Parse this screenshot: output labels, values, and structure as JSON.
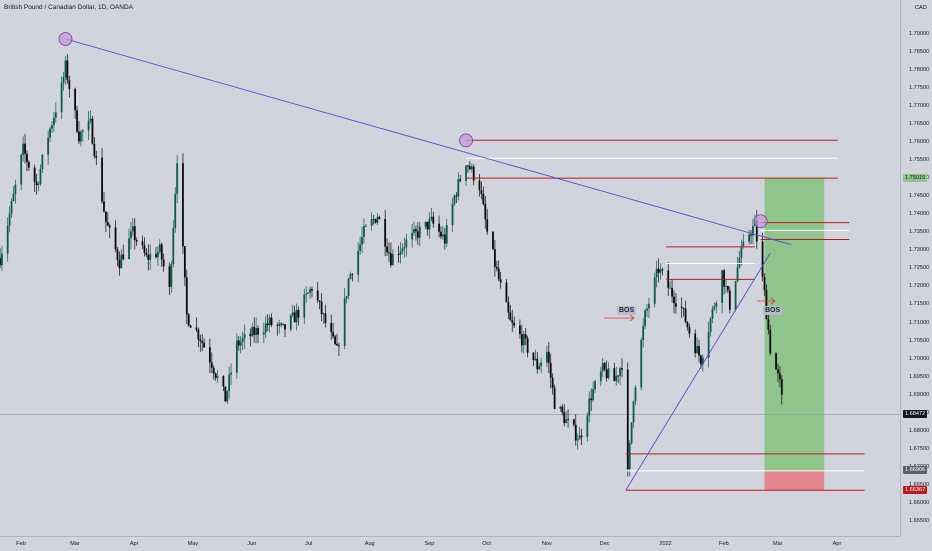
{
  "title": "British Pound / Canadian Dollar, 1D, OANDA",
  "currency": "CAD",
  "colors": {
    "background": "#d1d4dc",
    "candle_up": "#0b5a4f",
    "candle_down": "#0a0a0a",
    "trendline": "#5b4ccf",
    "level_red": "#b71c1c",
    "level_white": "#ffffff",
    "target_zone": "#8fc48d",
    "stop_zone": "#e0848e",
    "pivot_marker": "#c29bd8"
  },
  "price_axis": [
    "1.79000",
    "1.78500",
    "1.78000",
    "1.77500",
    "1.77000",
    "1.76500",
    "1.76000",
    "1.75500",
    "1.75000",
    "1.74500",
    "1.74000",
    "1.73500",
    "1.73000",
    "1.72500",
    "1.72000",
    "1.71500",
    "1.71000",
    "1.70500",
    "1.70000",
    "1.69500",
    "1.69000",
    "1.68500",
    "1.68000",
    "1.67500",
    "1.67000",
    "1.66500",
    "1.66000",
    "1.65500"
  ],
  "time_axis": [
    "Feb",
    "Mar",
    "Apr",
    "May",
    "Jun",
    "Jul",
    "Aug",
    "Sep",
    "Oct",
    "Nov",
    "Dec",
    "2022",
    "Feb",
    "Mar",
    "Apr"
  ],
  "price_tags": {
    "target": "1.75015",
    "current": "1.68472",
    "entry": "1.66906",
    "stop": "1.66367"
  },
  "annotations": {
    "bos_1": "BOS",
    "bos_2": "BOS"
  },
  "chart_data": {
    "type": "candlestick",
    "symbol": "GBPCAD",
    "timeframe": "1D",
    "ylim": [
      1.651,
      1.7995
    ],
    "x_range_months": [
      "Feb 2021",
      "Apr 2022"
    ],
    "path": [
      {
        "date": "2021-01-21",
        "price": 1.728
      },
      {
        "date": "2021-01-28",
        "price": 1.745
      },
      {
        "date": "2021-02-02",
        "price": 1.758
      },
      {
        "date": "2021-02-09",
        "price": 1.748
      },
      {
        "date": "2021-02-15",
        "price": 1.762
      },
      {
        "date": "2021-02-22",
        "price": 1.775
      },
      {
        "date": "2021-02-24",
        "price": 1.781
      },
      {
        "date": "2021-03-03",
        "price": 1.762
      },
      {
        "date": "2021-03-09",
        "price": 1.765
      },
      {
        "date": "2021-03-17",
        "price": 1.738
      },
      {
        "date": "2021-03-24",
        "price": 1.727
      },
      {
        "date": "2021-03-31",
        "price": 1.735
      },
      {
        "date": "2021-04-07",
        "price": 1.728
      },
      {
        "date": "2021-04-14",
        "price": 1.73
      },
      {
        "date": "2021-04-19",
        "price": 1.719
      },
      {
        "date": "2021-04-23",
        "price": 1.756
      },
      {
        "date": "2021-04-28",
        "price": 1.712
      },
      {
        "date": "2021-05-05",
        "price": 1.706
      },
      {
        "date": "2021-05-11",
        "price": 1.699
      },
      {
        "date": "2021-05-18",
        "price": 1.689
      },
      {
        "date": "2021-05-24",
        "price": 1.704
      },
      {
        "date": "2021-06-01",
        "price": 1.707
      },
      {
        "date": "2021-06-10",
        "price": 1.71
      },
      {
        "date": "2021-06-17",
        "price": 1.708
      },
      {
        "date": "2021-06-25",
        "price": 1.713
      },
      {
        "date": "2021-07-02",
        "price": 1.72
      },
      {
        "date": "2021-07-09",
        "price": 1.71
      },
      {
        "date": "2021-07-15",
        "price": 1.702
      },
      {
        "date": "2021-07-21",
        "price": 1.722
      },
      {
        "date": "2021-07-29",
        "price": 1.735
      },
      {
        "date": "2021-08-05",
        "price": 1.74
      },
      {
        "date": "2021-08-12",
        "price": 1.728
      },
      {
        "date": "2021-08-19",
        "price": 1.732
      },
      {
        "date": "2021-08-26",
        "price": 1.735
      },
      {
        "date": "2021-09-02",
        "price": 1.738
      },
      {
        "date": "2021-09-09",
        "price": 1.733
      },
      {
        "date": "2021-09-14",
        "price": 1.745
      },
      {
        "date": "2021-09-20",
        "price": 1.755
      },
      {
        "date": "2021-09-27",
        "price": 1.748
      },
      {
        "date": "2021-10-01",
        "price": 1.735
      },
      {
        "date": "2021-10-07",
        "price": 1.722
      },
      {
        "date": "2021-10-13",
        "price": 1.71
      },
      {
        "date": "2021-10-20",
        "price": 1.705
      },
      {
        "date": "2021-10-27",
        "price": 1.698
      },
      {
        "date": "2021-11-01",
        "price": 1.702
      },
      {
        "date": "2021-11-05",
        "price": 1.688
      },
      {
        "date": "2021-11-12",
        "price": 1.682
      },
      {
        "date": "2021-11-18",
        "price": 1.678
      },
      {
        "date": "2021-11-24",
        "price": 1.69
      },
      {
        "date": "2021-11-30",
        "price": 1.697
      },
      {
        "date": "2021-12-06",
        "price": 1.694
      },
      {
        "date": "2021-12-10",
        "price": 1.699
      },
      {
        "date": "2021-12-13",
        "price": 1.668
      },
      {
        "date": "2021-12-16",
        "price": 1.69
      },
      {
        "date": "2021-12-22",
        "price": 1.712
      },
      {
        "date": "2021-12-29",
        "price": 1.725
      },
      {
        "date": "2022-01-04",
        "price": 1.719
      },
      {
        "date": "2022-01-10",
        "price": 1.714
      },
      {
        "date": "2022-01-15",
        "price": 1.706
      },
      {
        "date": "2022-01-20",
        "price": 1.7
      },
      {
        "date": "2022-01-25",
        "price": 1.711
      },
      {
        "date": "2022-01-31",
        "price": 1.724
      },
      {
        "date": "2022-02-04",
        "price": 1.715
      },
      {
        "date": "2022-02-09",
        "price": 1.728
      },
      {
        "date": "2022-02-14",
        "price": 1.735
      },
      {
        "date": "2022-02-17",
        "price": 1.737
      },
      {
        "date": "2022-02-22",
        "price": 1.718
      },
      {
        "date": "2022-02-25",
        "price": 1.703
      },
      {
        "date": "2022-03-02",
        "price": 1.693
      },
      {
        "date": "2022-03-04",
        "price": 1.6847
      }
    ],
    "current_price": 1.68472,
    "levels": {
      "red": [
        1.76066,
        1.75015,
        1.73781,
        1.73316,
        1.7311,
        1.72209,
        1.67376,
        1.66367
      ],
      "white": [
        1.75564,
        1.73566,
        1.72648,
        1.66906
      ]
    },
    "trendlines": [
      {
        "from": {
          "date": "2021-02-24",
          "price": 1.7887
        },
        "to": {
          "date": "2022-03-08",
          "price": 1.7317
        }
      },
      {
        "from": {
          "date": "2021-12-12",
          "price": 1.6637
        },
        "to": {
          "date": "2022-02-25",
          "price": 1.7294
        }
      }
    ],
    "pivots": [
      {
        "date": "2021-02-24",
        "price": 1.7887
      },
      {
        "date": "2021-09-20",
        "price": 1.7606
      },
      {
        "date": "2022-02-20",
        "price": 1.7382
      }
    ],
    "position": {
      "side": "short",
      "entry": 1.66906,
      "target_zone_top": 1.75015,
      "stop_zone_bottom": 1.66367,
      "start": "2022-02-22",
      "end": "2022-03-25"
    }
  }
}
